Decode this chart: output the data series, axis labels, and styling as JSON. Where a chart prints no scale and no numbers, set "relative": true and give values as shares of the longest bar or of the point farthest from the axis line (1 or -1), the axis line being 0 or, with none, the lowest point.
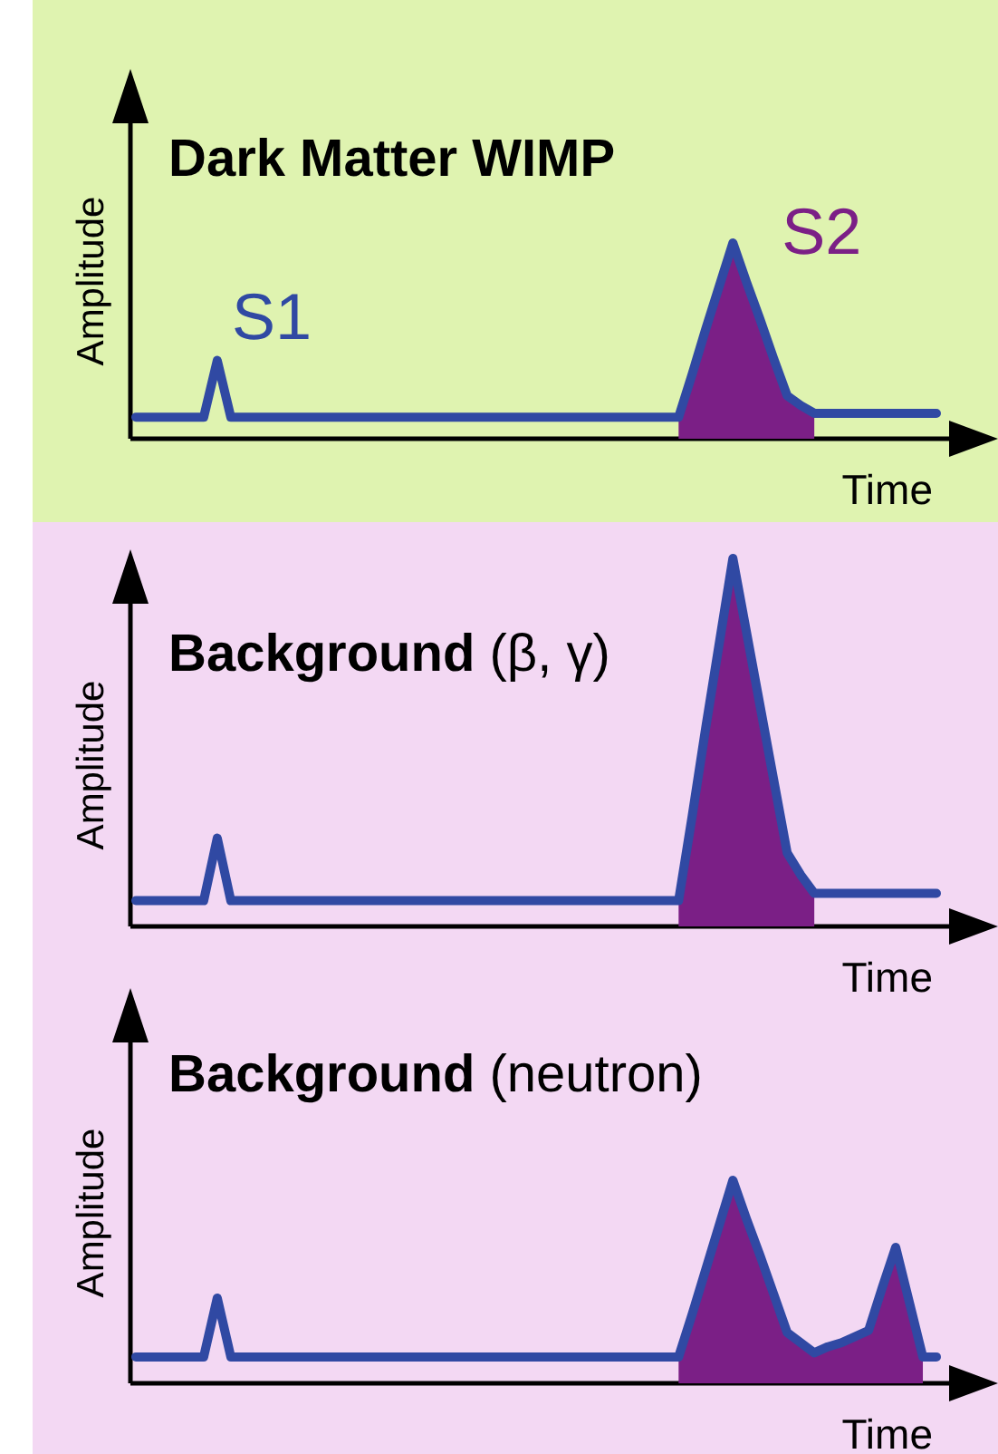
{
  "chart_data": [
    {
      "type": "line",
      "title": "Dark Matter WIMP",
      "xlabel": "Time",
      "ylabel": "Amplitude",
      "relative": true,
      "annotations": [
        "S1",
        "S2"
      ],
      "categories": [
        null,
        null,
        null,
        null,
        null,
        null,
        null,
        null,
        null,
        null,
        null,
        null,
        null,
        null,
        null,
        null,
        null,
        null,
        null,
        null,
        null,
        null,
        null,
        null,
        null,
        null,
        null,
        null,
        null,
        null,
        null,
        null,
        null,
        null,
        null,
        null,
        null,
        null,
        null,
        null,
        null,
        null,
        null,
        null,
        null,
        null,
        null,
        null,
        null,
        null,
        null,
        null,
        null,
        null,
        null,
        null,
        null,
        null,
        null,
        null
      ],
      "series": [
        {
          "type": "area",
          "color": "#7b1f86",
          "values": [
            null,
            null,
            null,
            null,
            null,
            null,
            null,
            null,
            null,
            null,
            null,
            null,
            null,
            null,
            null,
            null,
            null,
            null,
            null,
            null,
            null,
            null,
            null,
            null,
            null,
            null,
            null,
            null,
            null,
            null,
            null,
            null,
            null,
            null,
            null,
            null,
            null,
            null,
            null,
            null,
            0.11,
            0.33,
            0.56,
            0.78,
            1,
            0.8,
            0.61,
            0.41,
            0.22,
            0.17,
            0.13,
            null,
            null,
            null,
            null,
            null,
            null,
            null,
            null,
            null
          ]
        },
        {
          "type": "line",
          "color": "#3049a3",
          "values": [
            0.11,
            0.11,
            0.11,
            0.11,
            0.11,
            0.11,
            0.4,
            0.11,
            0.11,
            0.11,
            0.11,
            0.11,
            0.11,
            0.11,
            0.11,
            0.11,
            0.11,
            0.11,
            0.11,
            0.11,
            0.11,
            0.11,
            0.11,
            0.11,
            0.11,
            0.11,
            0.11,
            0.11,
            0.11,
            0.11,
            0.11,
            0.11,
            0.11,
            0.11,
            0.11,
            0.11,
            0.11,
            0.11,
            0.11,
            0.11,
            0.11,
            0.33,
            0.56,
            0.78,
            1,
            0.8,
            0.61,
            0.41,
            0.22,
            0.17,
            0.13,
            0.13,
            0.13,
            0.13,
            0.13,
            0.13,
            0.13,
            0.13,
            0.13,
            0.13
          ]
        }
      ]
    },
    {
      "type": "line",
      "title": "Background",
      "subtitle": "(β, γ)",
      "xlabel": "Time",
      "ylabel": "Amplitude",
      "relative": true,
      "categories": [
        null,
        null,
        null,
        null,
        null,
        null,
        null,
        null,
        null,
        null,
        null,
        null,
        null,
        null,
        null,
        null,
        null,
        null,
        null,
        null,
        null,
        null,
        null,
        null,
        null,
        null,
        null,
        null,
        null,
        null,
        null,
        null,
        null,
        null,
        null,
        null,
        null,
        null,
        null,
        null,
        null,
        null,
        null,
        null,
        null,
        null,
        null,
        null,
        null,
        null,
        null,
        null,
        null,
        null,
        null,
        null,
        null,
        null,
        null,
        null
      ],
      "series": [
        {
          "type": "area",
          "color": "#7b1f86",
          "values": [
            null,
            null,
            null,
            null,
            null,
            null,
            null,
            null,
            null,
            null,
            null,
            null,
            null,
            null,
            null,
            null,
            null,
            null,
            null,
            null,
            null,
            null,
            null,
            null,
            null,
            null,
            null,
            null,
            null,
            null,
            null,
            null,
            null,
            null,
            null,
            null,
            null,
            null,
            null,
            null,
            0.07,
            0.3,
            0.54,
            0.77,
            1,
            0.8,
            0.6,
            0.4,
            0.2,
            0.14,
            0.09,
            null,
            null,
            null,
            null,
            null,
            null,
            null,
            null,
            null
          ]
        },
        {
          "type": "line",
          "color": "#3049a3",
          "values": [
            0.07,
            0.07,
            0.07,
            0.07,
            0.07,
            0.07,
            0.24,
            0.07,
            0.07,
            0.07,
            0.07,
            0.07,
            0.07,
            0.07,
            0.07,
            0.07,
            0.07,
            0.07,
            0.07,
            0.07,
            0.07,
            0.07,
            0.07,
            0.07,
            0.07,
            0.07,
            0.07,
            0.07,
            0.07,
            0.07,
            0.07,
            0.07,
            0.07,
            0.07,
            0.07,
            0.07,
            0.07,
            0.07,
            0.07,
            0.07,
            0.07,
            0.3,
            0.54,
            0.77,
            1,
            0.8,
            0.6,
            0.4,
            0.2,
            0.14,
            0.09,
            0.09,
            0.09,
            0.09,
            0.09,
            0.09,
            0.09,
            0.09,
            0.09,
            0.09
          ]
        }
      ]
    },
    {
      "type": "line",
      "title": "Background",
      "subtitle": "(neutron)",
      "xlabel": "Time",
      "ylabel": "Amplitude",
      "relative": true,
      "categories": [
        null,
        null,
        null,
        null,
        null,
        null,
        null,
        null,
        null,
        null,
        null,
        null,
        null,
        null,
        null,
        null,
        null,
        null,
        null,
        null,
        null,
        null,
        null,
        null,
        null,
        null,
        null,
        null,
        null,
        null,
        null,
        null,
        null,
        null,
        null,
        null,
        null,
        null,
        null,
        null,
        null,
        null,
        null,
        null,
        null,
        null,
        null,
        null,
        null,
        null,
        null,
        null,
        null,
        null,
        null,
        null,
        null,
        null,
        null,
        null
      ],
      "series": [
        {
          "type": "area",
          "color": "#7b1f86",
          "values": [
            null,
            null,
            null,
            null,
            null,
            null,
            null,
            null,
            null,
            null,
            null,
            null,
            null,
            null,
            null,
            null,
            null,
            null,
            null,
            null,
            null,
            null,
            null,
            null,
            null,
            null,
            null,
            null,
            null,
            null,
            null,
            null,
            null,
            null,
            null,
            null,
            null,
            null,
            null,
            null,
            0.13,
            0.34,
            0.56,
            0.78,
            1,
            0.81,
            0.63,
            0.44,
            0.25,
            0.2,
            0.15,
            0.18,
            0.2,
            0.23,
            0.26,
            0.47,
            0.67,
            0.4,
            0.13,
            null
          ]
        },
        {
          "type": "line",
          "color": "#3049a3",
          "values": [
            0.13,
            0.13,
            0.13,
            0.13,
            0.13,
            0.13,
            0.42,
            0.13,
            0.13,
            0.13,
            0.13,
            0.13,
            0.13,
            0.13,
            0.13,
            0.13,
            0.13,
            0.13,
            0.13,
            0.13,
            0.13,
            0.13,
            0.13,
            0.13,
            0.13,
            0.13,
            0.13,
            0.13,
            0.13,
            0.13,
            0.13,
            0.13,
            0.13,
            0.13,
            0.13,
            0.13,
            0.13,
            0.13,
            0.13,
            0.13,
            0.13,
            0.34,
            0.56,
            0.78,
            1,
            0.81,
            0.63,
            0.44,
            0.25,
            0.2,
            0.15,
            0.18,
            0.2,
            0.23,
            0.26,
            0.47,
            0.67,
            0.4,
            0.13,
            0.13
          ]
        }
      ]
    }
  ]
}
